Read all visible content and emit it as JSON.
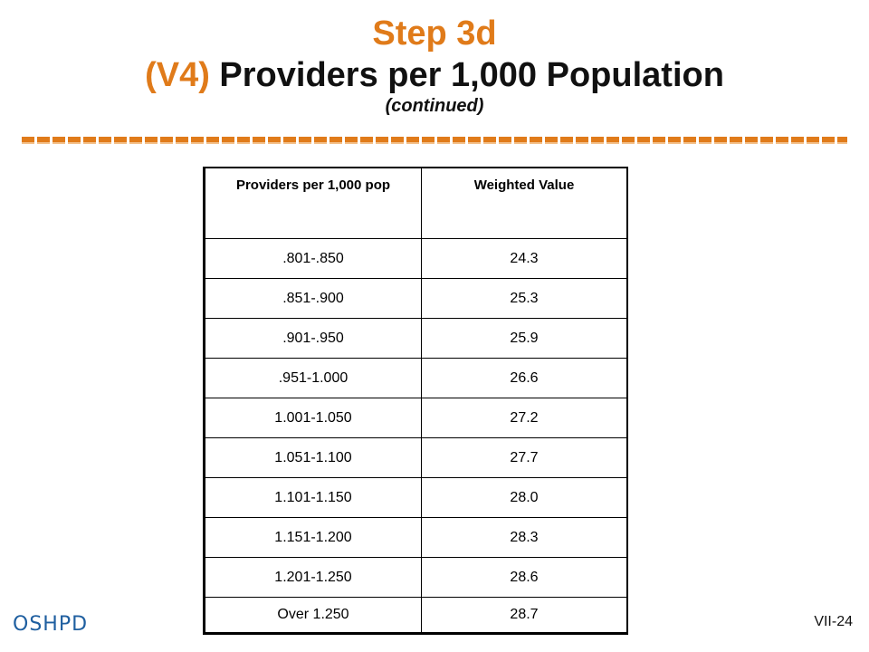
{
  "slide": {
    "title_line1": "Step 3d",
    "title_v4": "(V4)",
    "title_main": "Providers per 1,000 Population",
    "subtitle": "(continued)",
    "accent_color": "#e07b1a"
  },
  "table": {
    "headers": [
      "Providers per 1,000 pop",
      "Weighted Value"
    ],
    "rows": [
      [
        ".801-.850",
        "24.3"
      ],
      [
        ".851-.900",
        "25.3"
      ],
      [
        ".901-.950",
        "25.9"
      ],
      [
        ".951-1.000",
        "26.6"
      ],
      [
        "1.001-1.050",
        "27.2"
      ],
      [
        "1.051-1.100",
        "27.7"
      ],
      [
        "1.101-1.150",
        "28.0"
      ],
      [
        "1.151-1.200",
        "28.3"
      ],
      [
        "1.201-1.250",
        "28.6"
      ],
      [
        "Over 1.250",
        "28.7"
      ]
    ]
  },
  "footer": {
    "logo_text_a": "OSH",
    "logo_text_b": "PD",
    "page_number": "VII-24"
  }
}
